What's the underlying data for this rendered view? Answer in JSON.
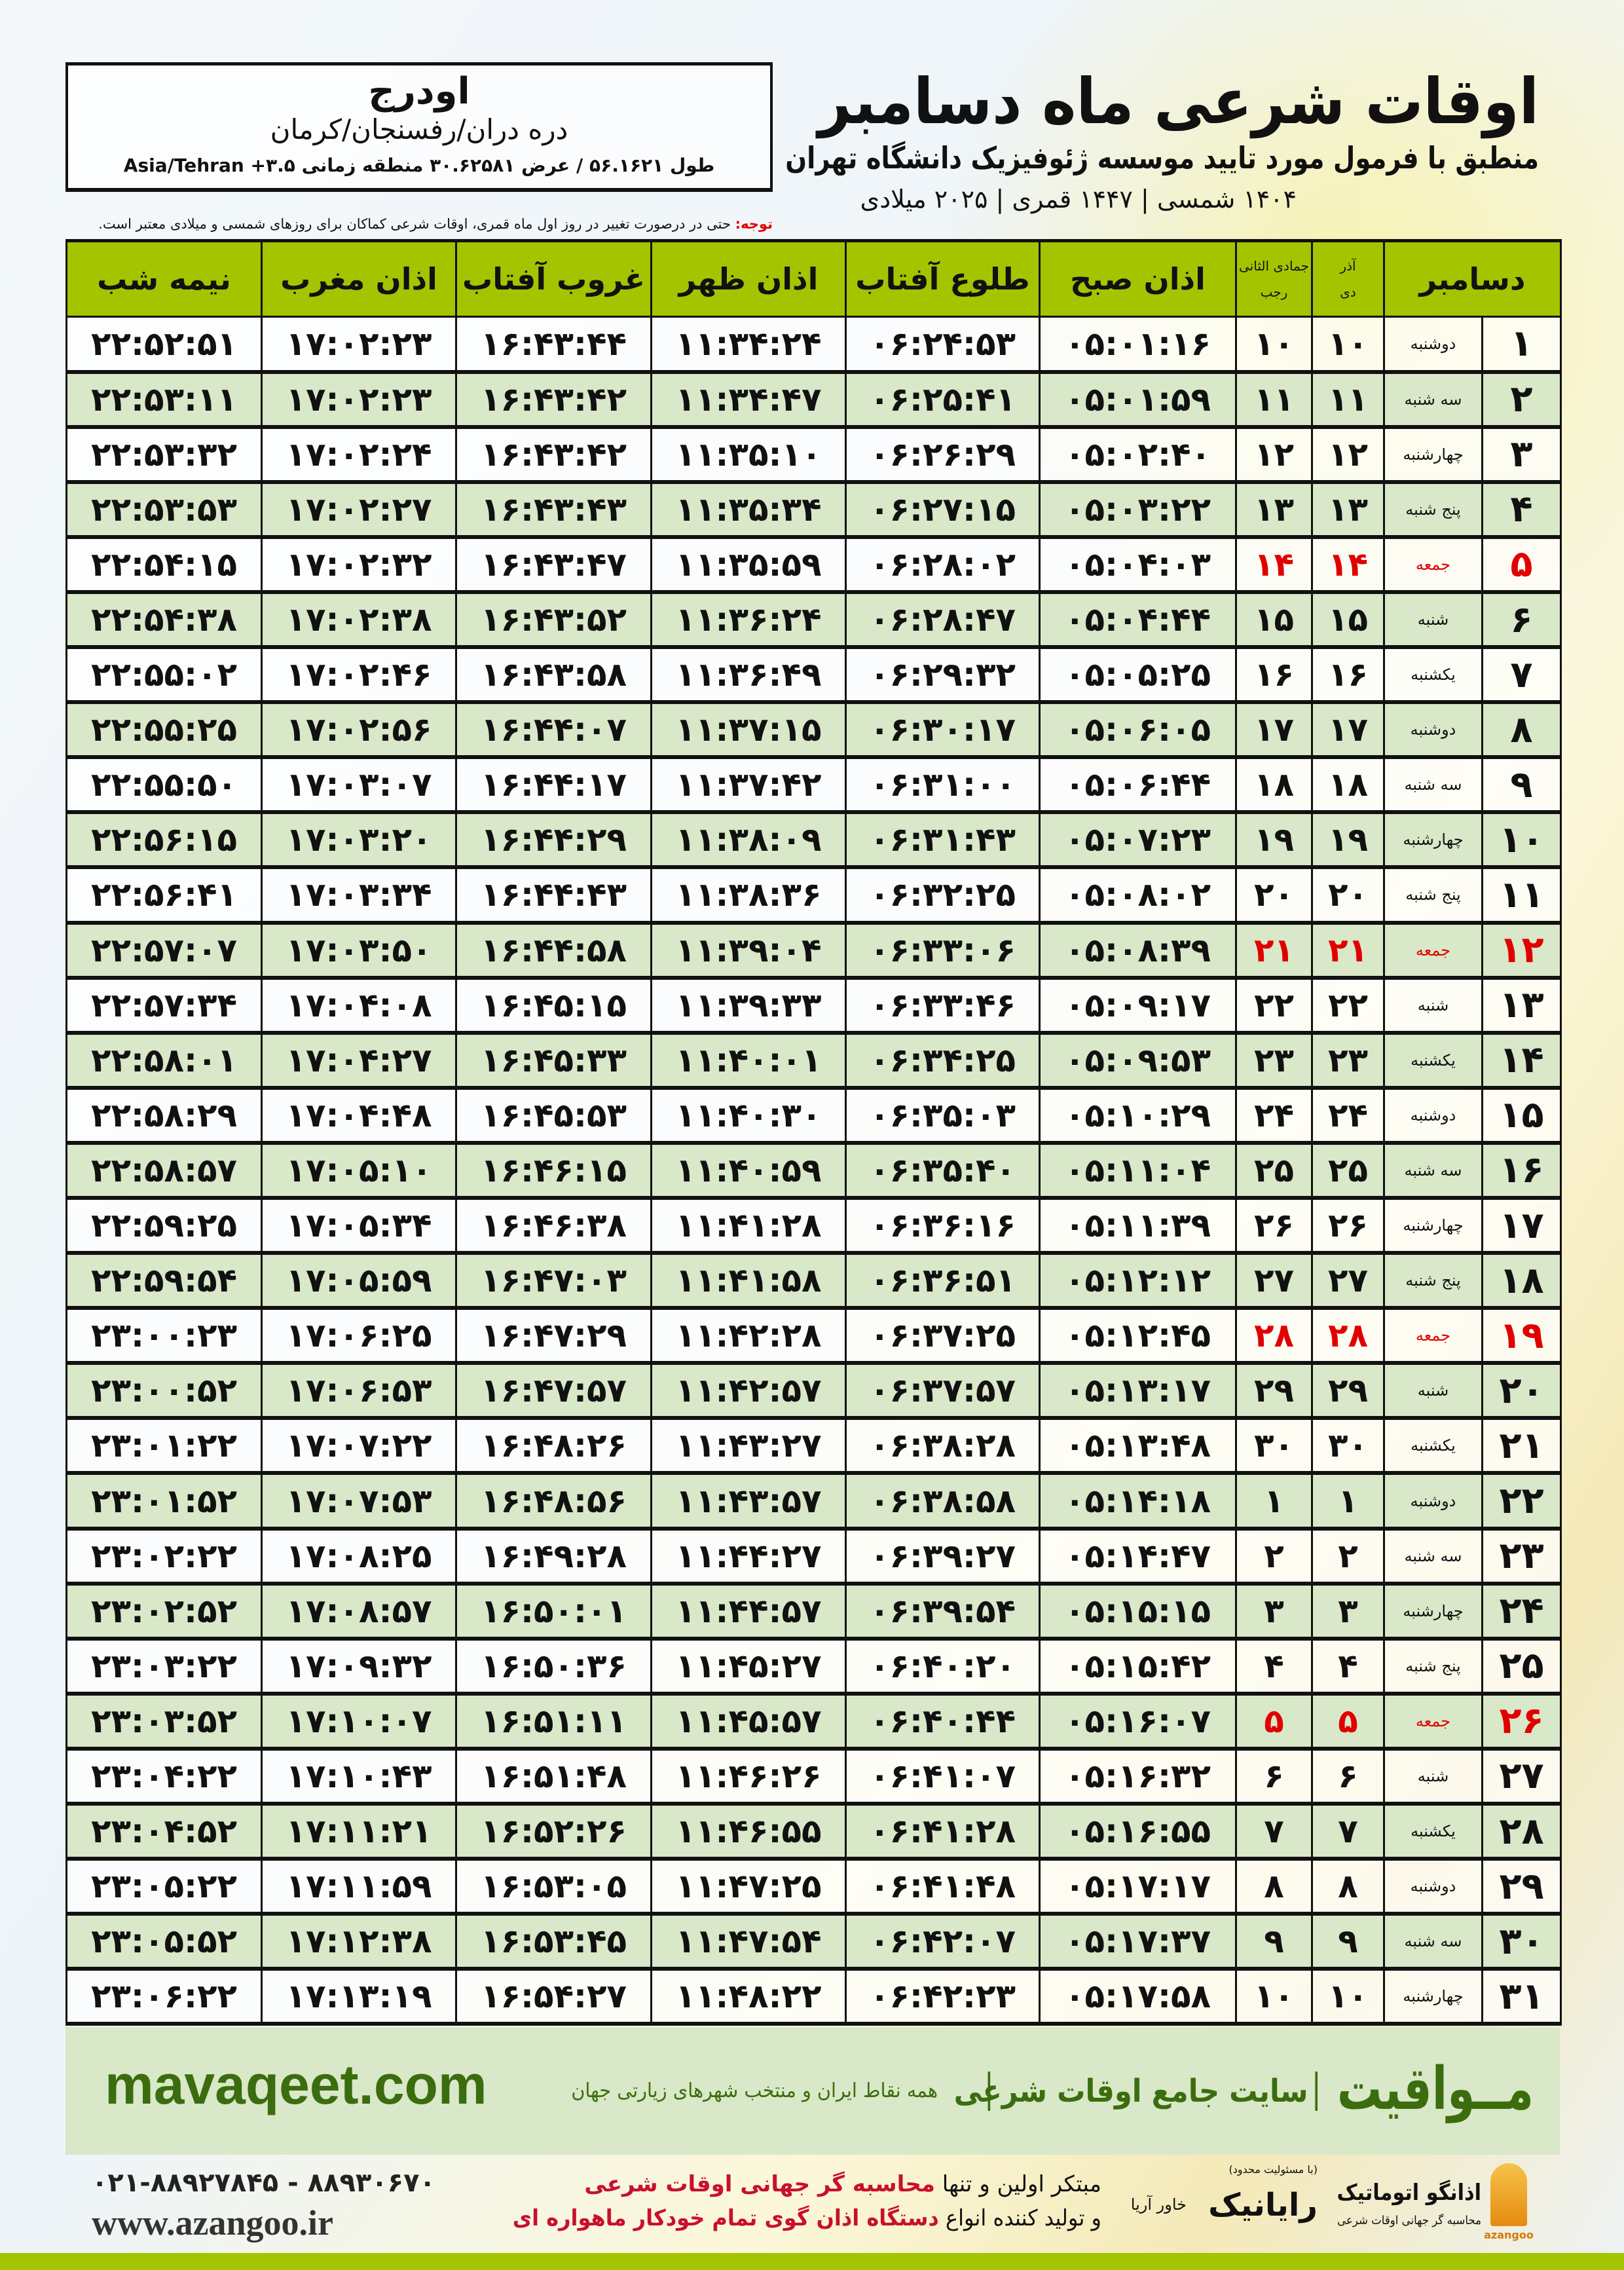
{
  "header": {
    "title": "اوقات شرعی ماه دسامبر",
    "subtitle": "منطبق با فرمول مورد تایید موسسه ژئوفیزیک دانشگاه تهران",
    "dates": "۱۴۰۴ شمسی | ۱۴۴۷ قمری | ۲۰۲۵ میلادی"
  },
  "location": {
    "name": "اودرج",
    "path": "دره دران/رفسنجان/کرمان",
    "coords": "طول ۵۶.۱۶۲۱ / عرض ۳۰.۶۲۵۸۱ منطقه زمانی ۳.۵+ Asia/Tehran"
  },
  "note": {
    "label": "توجه:",
    "text": "حتی در درصورت تغییر در روز اول ماه قمری، اوقات شرعی کماکان برای روزهای شمسی و میلادی معتبر است."
  },
  "table": {
    "headers": {
      "day": "دسامبر",
      "dey_top": "آذر",
      "dey": "دی",
      "rajab_top": "جمادی الثانی",
      "rajab": "رجب",
      "fajr": "اذان صبح",
      "sunrise": "طلوع آفتاب",
      "dhuhr": "اذان ظهر",
      "sunset": "غروب آفتاب",
      "maghrib": "اذان مغرب",
      "midnight": "نیمه شب"
    },
    "friday_color": "#e00000",
    "rows": [
      [
        "۱",
        "دوشنبه",
        "۱۰",
        "۱۰",
        "۰۵:۰۱:۱۶",
        "۰۶:۲۴:۵۳",
        "۱۱:۳۴:۲۴",
        "۱۶:۴۳:۴۴",
        "۱۷:۰۲:۲۳",
        "۲۲:۵۲:۵۱"
      ],
      [
        "۲",
        "سه شنبه",
        "۱۱",
        "۱۱",
        "۰۵:۰۱:۵۹",
        "۰۶:۲۵:۴۱",
        "۱۱:۳۴:۴۷",
        "۱۶:۴۳:۴۲",
        "۱۷:۰۲:۲۳",
        "۲۲:۵۳:۱۱"
      ],
      [
        "۳",
        "چهارشنبه",
        "۱۲",
        "۱۲",
        "۰۵:۰۲:۴۰",
        "۰۶:۲۶:۲۹",
        "۱۱:۳۵:۱۰",
        "۱۶:۴۳:۴۲",
        "۱۷:۰۲:۲۴",
        "۲۲:۵۳:۳۲"
      ],
      [
        "۴",
        "پنج شنبه",
        "۱۳",
        "۱۳",
        "۰۵:۰۳:۲۲",
        "۰۶:۲۷:۱۵",
        "۱۱:۳۵:۳۴",
        "۱۶:۴۳:۴۳",
        "۱۷:۰۲:۲۷",
        "۲۲:۵۳:۵۳"
      ],
      [
        "۵",
        "جمعه",
        "۱۴",
        "۱۴",
        "۰۵:۰۴:۰۳",
        "۰۶:۲۸:۰۲",
        "۱۱:۳۵:۵۹",
        "۱۶:۴۳:۴۷",
        "۱۷:۰۲:۳۲",
        "۲۲:۵۴:۱۵"
      ],
      [
        "۶",
        "شنبه",
        "۱۵",
        "۱۵",
        "۰۵:۰۴:۴۴",
        "۰۶:۲۸:۴۷",
        "۱۱:۳۶:۲۴",
        "۱۶:۴۳:۵۲",
        "۱۷:۰۲:۳۸",
        "۲۲:۵۴:۳۸"
      ],
      [
        "۷",
        "یکشنبه",
        "۱۶",
        "۱۶",
        "۰۵:۰۵:۲۵",
        "۰۶:۲۹:۳۲",
        "۱۱:۳۶:۴۹",
        "۱۶:۴۳:۵۸",
        "۱۷:۰۲:۴۶",
        "۲۲:۵۵:۰۲"
      ],
      [
        "۸",
        "دوشنبه",
        "۱۷",
        "۱۷",
        "۰۵:۰۶:۰۵",
        "۰۶:۳۰:۱۷",
        "۱۱:۳۷:۱۵",
        "۱۶:۴۴:۰۷",
        "۱۷:۰۲:۵۶",
        "۲۲:۵۵:۲۵"
      ],
      [
        "۹",
        "سه شنبه",
        "۱۸",
        "۱۸",
        "۰۵:۰۶:۴۴",
        "۰۶:۳۱:۰۰",
        "۱۱:۳۷:۴۲",
        "۱۶:۴۴:۱۷",
        "۱۷:۰۳:۰۷",
        "۲۲:۵۵:۵۰"
      ],
      [
        "۱۰",
        "چهارشنبه",
        "۱۹",
        "۱۹",
        "۰۵:۰۷:۲۳",
        "۰۶:۳۱:۴۳",
        "۱۱:۳۸:۰۹",
        "۱۶:۴۴:۲۹",
        "۱۷:۰۳:۲۰",
        "۲۲:۵۶:۱۵"
      ],
      [
        "۱۱",
        "پنج شنبه",
        "۲۰",
        "۲۰",
        "۰۵:۰۸:۰۲",
        "۰۶:۳۲:۲۵",
        "۱۱:۳۸:۳۶",
        "۱۶:۴۴:۴۳",
        "۱۷:۰۳:۳۴",
        "۲۲:۵۶:۴۱"
      ],
      [
        "۱۲",
        "جمعه",
        "۲۱",
        "۲۱",
        "۰۵:۰۸:۳۹",
        "۰۶:۳۳:۰۶",
        "۱۱:۳۹:۰۴",
        "۱۶:۴۴:۵۸",
        "۱۷:۰۳:۵۰",
        "۲۲:۵۷:۰۷"
      ],
      [
        "۱۳",
        "شنبه",
        "۲۲",
        "۲۲",
        "۰۵:۰۹:۱۷",
        "۰۶:۳۳:۴۶",
        "۱۱:۳۹:۳۳",
        "۱۶:۴۵:۱۵",
        "۱۷:۰۴:۰۸",
        "۲۲:۵۷:۳۴"
      ],
      [
        "۱۴",
        "یکشنبه",
        "۲۳",
        "۲۳",
        "۰۵:۰۹:۵۳",
        "۰۶:۳۴:۲۵",
        "۱۱:۴۰:۰۱",
        "۱۶:۴۵:۳۳",
        "۱۷:۰۴:۲۷",
        "۲۲:۵۸:۰۱"
      ],
      [
        "۱۵",
        "دوشنبه",
        "۲۴",
        "۲۴",
        "۰۵:۱۰:۲۹",
        "۰۶:۳۵:۰۳",
        "۱۱:۴۰:۳۰",
        "۱۶:۴۵:۵۳",
        "۱۷:۰۴:۴۸",
        "۲۲:۵۸:۲۹"
      ],
      [
        "۱۶",
        "سه شنبه",
        "۲۵",
        "۲۵",
        "۰۵:۱۱:۰۴",
        "۰۶:۳۵:۴۰",
        "۱۱:۴۰:۵۹",
        "۱۶:۴۶:۱۵",
        "۱۷:۰۵:۱۰",
        "۲۲:۵۸:۵۷"
      ],
      [
        "۱۷",
        "چهارشنبه",
        "۲۶",
        "۲۶",
        "۰۵:۱۱:۳۹",
        "۰۶:۳۶:۱۶",
        "۱۱:۴۱:۲۸",
        "۱۶:۴۶:۳۸",
        "۱۷:۰۵:۳۴",
        "۲۲:۵۹:۲۵"
      ],
      [
        "۱۸",
        "پنج شنبه",
        "۲۷",
        "۲۷",
        "۰۵:۱۲:۱۲",
        "۰۶:۳۶:۵۱",
        "۱۱:۴۱:۵۸",
        "۱۶:۴۷:۰۳",
        "۱۷:۰۵:۵۹",
        "۲۲:۵۹:۵۴"
      ],
      [
        "۱۹",
        "جمعه",
        "۲۸",
        "۲۸",
        "۰۵:۱۲:۴۵",
        "۰۶:۳۷:۲۵",
        "۱۱:۴۲:۲۸",
        "۱۶:۴۷:۲۹",
        "۱۷:۰۶:۲۵",
        "۲۳:۰۰:۲۳"
      ],
      [
        "۲۰",
        "شنبه",
        "۲۹",
        "۲۹",
        "۰۵:۱۳:۱۷",
        "۰۶:۳۷:۵۷",
        "۱۱:۴۲:۵۷",
        "۱۶:۴۷:۵۷",
        "۱۷:۰۶:۵۳",
        "۲۳:۰۰:۵۲"
      ],
      [
        "۲۱",
        "یکشنبه",
        "۳۰",
        "۳۰",
        "۰۵:۱۳:۴۸",
        "۰۶:۳۸:۲۸",
        "۱۱:۴۳:۲۷",
        "۱۶:۴۸:۲۶",
        "۱۷:۰۷:۲۲",
        "۲۳:۰۱:۲۲"
      ],
      [
        "۲۲",
        "دوشنبه",
        "۱",
        "۱",
        "۰۵:۱۴:۱۸",
        "۰۶:۳۸:۵۸",
        "۱۱:۴۳:۵۷",
        "۱۶:۴۸:۵۶",
        "۱۷:۰۷:۵۳",
        "۲۳:۰۱:۵۲"
      ],
      [
        "۲۳",
        "سه شنبه",
        "۲",
        "۲",
        "۰۵:۱۴:۴۷",
        "۰۶:۳۹:۲۷",
        "۱۱:۴۴:۲۷",
        "۱۶:۴۹:۲۸",
        "۱۷:۰۸:۲۵",
        "۲۳:۰۲:۲۲"
      ],
      [
        "۲۴",
        "چهارشنبه",
        "۳",
        "۳",
        "۰۵:۱۵:۱۵",
        "۰۶:۳۹:۵۴",
        "۱۱:۴۴:۵۷",
        "۱۶:۵۰:۰۱",
        "۱۷:۰۸:۵۷",
        "۲۳:۰۲:۵۲"
      ],
      [
        "۲۵",
        "پنج شنبه",
        "۴",
        "۴",
        "۰۵:۱۵:۴۲",
        "۰۶:۴۰:۲۰",
        "۱۱:۴۵:۲۷",
        "۱۶:۵۰:۳۶",
        "۱۷:۰۹:۳۲",
        "۲۳:۰۳:۲۲"
      ],
      [
        "۲۶",
        "جمعه",
        "۵",
        "۵",
        "۰۵:۱۶:۰۷",
        "۰۶:۴۰:۴۴",
        "۱۱:۴۵:۵۷",
        "۱۶:۵۱:۱۱",
        "۱۷:۱۰:۰۷",
        "۲۳:۰۳:۵۲"
      ],
      [
        "۲۷",
        "شنبه",
        "۶",
        "۶",
        "۰۵:۱۶:۳۲",
        "۰۶:۴۱:۰۷",
        "۱۱:۴۶:۲۶",
        "۱۶:۵۱:۴۸",
        "۱۷:۱۰:۴۳",
        "۲۳:۰۴:۲۲"
      ],
      [
        "۲۸",
        "یکشنبه",
        "۷",
        "۷",
        "۰۵:۱۶:۵۵",
        "۰۶:۴۱:۲۸",
        "۱۱:۴۶:۵۵",
        "۱۶:۵۲:۲۶",
        "۱۷:۱۱:۲۱",
        "۲۳:۰۴:۵۲"
      ],
      [
        "۲۹",
        "دوشنبه",
        "۸",
        "۸",
        "۰۵:۱۷:۱۷",
        "۰۶:۴۱:۴۸",
        "۱۱:۴۷:۲۵",
        "۱۶:۵۳:۰۵",
        "۱۷:۱۱:۵۹",
        "۲۳:۰۵:۲۲"
      ],
      [
        "۳۰",
        "سه شنبه",
        "۹",
        "۹",
        "۰۵:۱۷:۳۷",
        "۰۶:۴۲:۰۷",
        "۱۱:۴۷:۵۴",
        "۱۶:۵۳:۴۵",
        "۱۷:۱۲:۳۸",
        "۲۳:۰۵:۵۲"
      ],
      [
        "۳۱",
        "چهارشنبه",
        "۱۰",
        "۱۰",
        "۰۵:۱۷:۵۸",
        "۰۶:۴۲:۲۳",
        "۱۱:۴۸:۲۲",
        "۱۶:۵۴:۲۷",
        "۱۷:۱۳:۱۹",
        "۲۳:۰۶:۲۲"
      ]
    ]
  },
  "footer": {
    "brand": "مــواقیت",
    "tagline": "سایت جامع اوقات شرعی",
    "tagline2": "همه نقاط ایران و منتخب شهرهای زیارتی جهان",
    "site": "mavaqeet.com",
    "ad_line1_a": "مبتکر اولین و تنها",
    "ad_line1_b": "محاسبه گر جهانی اوقات شرعی",
    "ad_line2_a": "و تولید کننده انواع",
    "ad_line2_b": "دستگاه اذان گوی تمام خودکار ماهواره ای",
    "phone": "۰۲۱-۸۸۹۲۷۸۴۵ - ۸۸۹۳۰۶۷۰",
    "web": "www.azangoo.ir",
    "logo1_title": "اذانگو اتوماتیک",
    "logo1_sub": "محاسبه گر جهانی اوقات شرعی",
    "logo1_en": "azangoo",
    "logo2_title": "رایانیک",
    "logo2_sub": "(با مسئولیت محدود)",
    "logo2_side": "خاور آریا"
  },
  "colors": {
    "header_green": "#a4c400",
    "row_green": "#d9e8c8",
    "brand_green": "#3b6d0e",
    "accent_red": "#c8102e"
  }
}
